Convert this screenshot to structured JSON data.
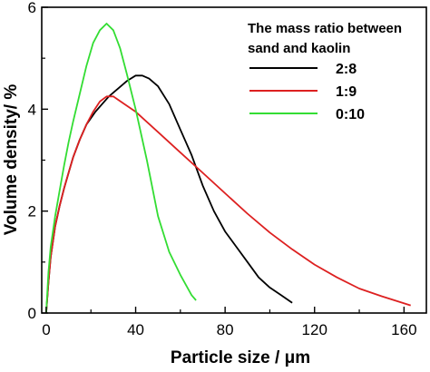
{
  "chart_data": {
    "type": "line",
    "xlabel": "Particle size / μm",
    "ylabel": "Volume density/ %",
    "xlim": [
      -2,
      170
    ],
    "ylim": [
      0,
      6
    ],
    "xticks": [
      0,
      40,
      80,
      120,
      160
    ],
    "yticks": [
      0,
      2,
      4,
      6
    ],
    "legend": {
      "title_lines": [
        "The mass ratio between",
        "sand and kaolin"
      ],
      "placement": "top-right"
    },
    "grid": false,
    "series": [
      {
        "name": "2:8",
        "color": "#000000",
        "points": [
          [
            0,
            0
          ],
          [
            1,
            0.6
          ],
          [
            2,
            1.1
          ],
          [
            4,
            1.7
          ],
          [
            6,
            2.1
          ],
          [
            8,
            2.45
          ],
          [
            10,
            2.75
          ],
          [
            12,
            3.05
          ],
          [
            15,
            3.4
          ],
          [
            18,
            3.7
          ],
          [
            22,
            3.95
          ],
          [
            25,
            4.1
          ],
          [
            28,
            4.25
          ],
          [
            32,
            4.4
          ],
          [
            36,
            4.55
          ],
          [
            40,
            4.66
          ],
          [
            43,
            4.66
          ],
          [
            46,
            4.6
          ],
          [
            50,
            4.45
          ],
          [
            55,
            4.1
          ],
          [
            60,
            3.6
          ],
          [
            65,
            3.1
          ],
          [
            70,
            2.5
          ],
          [
            75,
            2.0
          ],
          [
            80,
            1.6
          ],
          [
            85,
            1.3
          ],
          [
            90,
            1.0
          ],
          [
            95,
            0.7
          ],
          [
            100,
            0.5
          ],
          [
            105,
            0.35
          ],
          [
            110,
            0.2
          ]
        ]
      },
      {
        "name": "1:9",
        "color": "#dd2020",
        "points": [
          [
            0,
            0
          ],
          [
            1,
            0.6
          ],
          [
            2,
            1.1
          ],
          [
            4,
            1.7
          ],
          [
            6,
            2.1
          ],
          [
            8,
            2.45
          ],
          [
            10,
            2.75
          ],
          [
            12,
            3.05
          ],
          [
            15,
            3.4
          ],
          [
            18,
            3.7
          ],
          [
            21,
            3.95
          ],
          [
            24,
            4.15
          ],
          [
            27,
            4.25
          ],
          [
            30,
            4.25
          ],
          [
            35,
            4.1
          ],
          [
            40,
            3.95
          ],
          [
            50,
            3.55
          ],
          [
            60,
            3.15
          ],
          [
            70,
            2.75
          ],
          [
            80,
            2.35
          ],
          [
            90,
            1.95
          ],
          [
            100,
            1.58
          ],
          [
            110,
            1.25
          ],
          [
            120,
            0.95
          ],
          [
            130,
            0.7
          ],
          [
            140,
            0.48
          ],
          [
            150,
            0.33
          ],
          [
            163,
            0.15
          ]
        ]
      },
      {
        "name": "0:10",
        "color": "#33dd33",
        "points": [
          [
            0,
            0
          ],
          [
            1,
            0.8
          ],
          [
            2,
            1.3
          ],
          [
            4,
            1.9
          ],
          [
            6,
            2.4
          ],
          [
            8,
            2.9
          ],
          [
            10,
            3.35
          ],
          [
            12,
            3.75
          ],
          [
            15,
            4.3
          ],
          [
            18,
            4.85
          ],
          [
            21,
            5.3
          ],
          [
            24,
            5.55
          ],
          [
            27,
            5.68
          ],
          [
            30,
            5.55
          ],
          [
            33,
            5.2
          ],
          [
            36,
            4.7
          ],
          [
            40,
            4.0
          ],
          [
            45,
            3.0
          ],
          [
            50,
            1.9
          ],
          [
            55,
            1.2
          ],
          [
            60,
            0.75
          ],
          [
            65,
            0.35
          ],
          [
            67,
            0.25
          ]
        ]
      }
    ]
  }
}
